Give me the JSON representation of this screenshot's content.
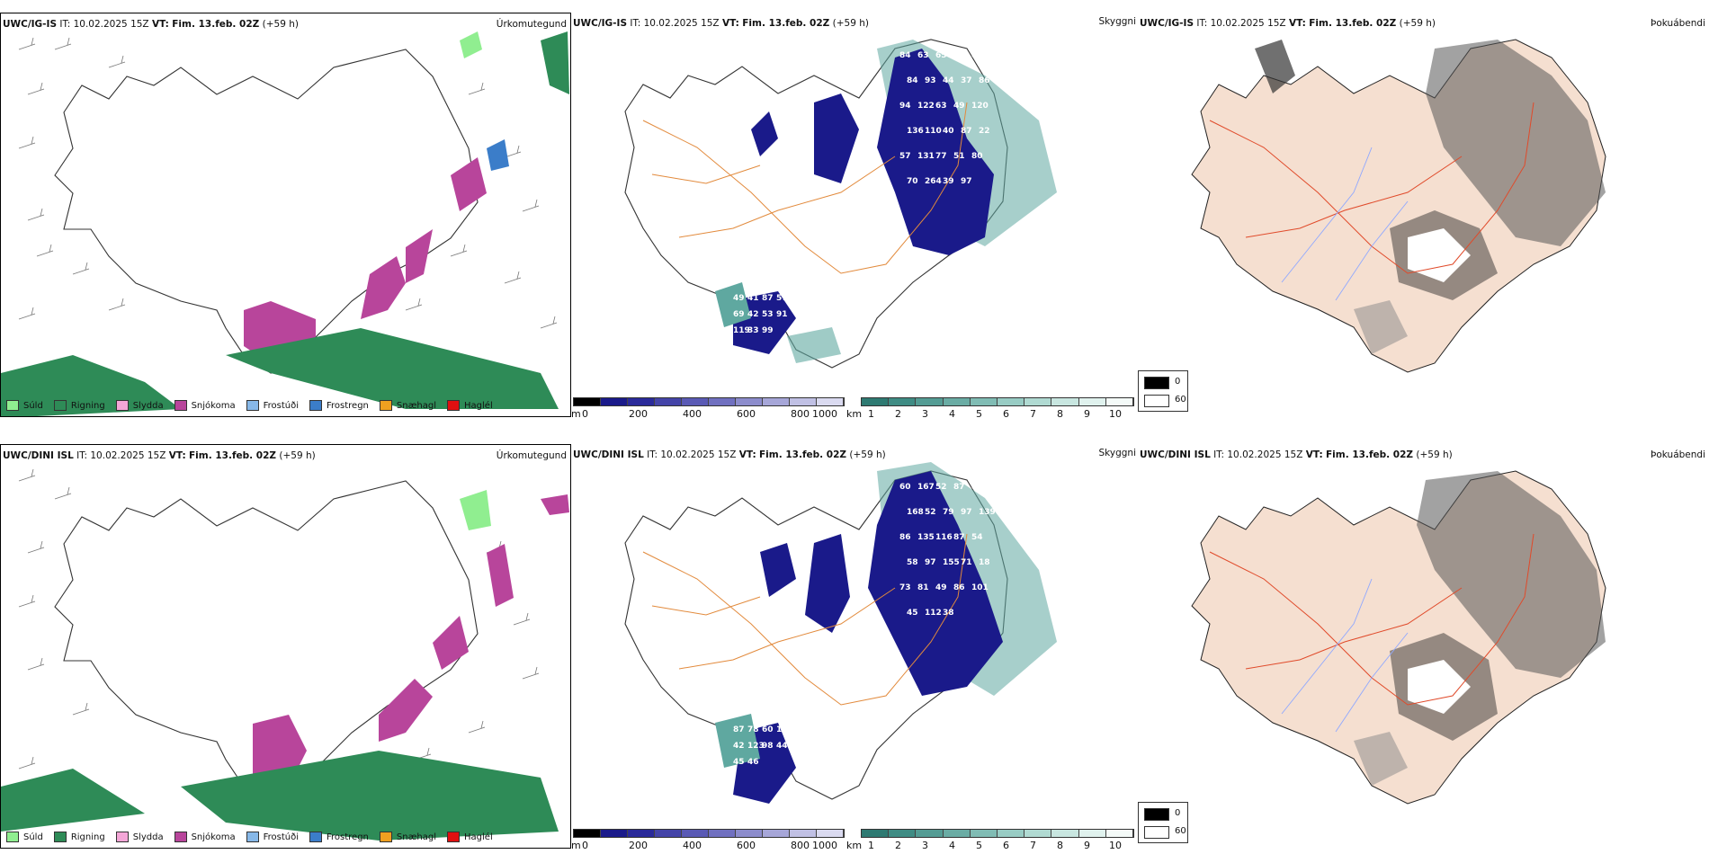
{
  "rows": [
    {
      "model": "UWC/IG-IS",
      "it_label": "IT:",
      "it_value": "10.02.2025 15Z",
      "vt_label": "VT:",
      "vt_value": "Fim. 13.feb. 02Z",
      "lead": "(+59 h)"
    },
    {
      "model": "UWC/DINI ISL",
      "it_label": "IT:",
      "it_value": "10.02.2025 15Z",
      "vt_label": "VT:",
      "vt_value": "Fim. 13.feb. 02Z",
      "lead": "(+59 h)"
    }
  ],
  "panel_titles": {
    "precip": "Úrkomutegund",
    "cloud": "Skyggni",
    "fog": "Þokuábendi"
  },
  "precip_legend": [
    {
      "label": "Súld",
      "color": "#90ee90"
    },
    {
      "label": "Rigning",
      "color": "#2e8b57"
    },
    {
      "label": "Slydda",
      "color": "#f4a6d7"
    },
    {
      "label": "Snjókoma",
      "color": "#b8459b"
    },
    {
      "label": "Frostúði",
      "color": "#87b8e8"
    },
    {
      "label": "Frostregn",
      "color": "#3b7dc9"
    },
    {
      "label": "Snæhagl",
      "color": "#f0a020"
    },
    {
      "label": "Haglél",
      "color": "#e01010"
    }
  ],
  "cloud_base_scale": {
    "unit": "m",
    "ticks": [
      "0",
      "200",
      "400",
      "600",
      "800",
      "1000"
    ]
  },
  "visibility_scale": {
    "unit": "km",
    "ticks": [
      "1",
      "2",
      "3",
      "4",
      "5",
      "6",
      "7",
      "8",
      "9",
      "10"
    ]
  },
  "fog_scale": {
    "low": "0",
    "high": "60"
  },
  "cloud_labels_top": [
    "84",
    "63",
    "65",
    "80",
    "88",
    "84",
    "93",
    "44",
    "37",
    "86",
    "94",
    "122",
    "63",
    "49",
    "120",
    "136",
    "110",
    "40",
    "87",
    "22",
    "57",
    "131",
    "77",
    "51",
    "80",
    "70",
    "264",
    "39",
    "97",
    "49",
    "41",
    "87",
    "57",
    "69",
    "42",
    "53",
    "91",
    "119",
    "33",
    "99"
  ],
  "cloud_labels_bottom": [
    "60",
    "167",
    "52",
    "87",
    "86",
    "168",
    "52",
    "79",
    "97",
    "139",
    "86",
    "135",
    "116",
    "87",
    "54",
    "58",
    "97",
    "155",
    "71",
    "18",
    "73",
    "81",
    "49",
    "86",
    "101",
    "45",
    "112",
    "38",
    "87",
    "78",
    "60",
    "10",
    "42",
    "123",
    "98",
    "44",
    "45",
    "46"
  ],
  "colors": {
    "land_fill": "#f5dfd0",
    "coast": "#222222",
    "roads_orange": "#e28a3c",
    "roads_red": "#e04a2a",
    "rivers": "#8fa8ff",
    "cloud_dark": "#1a1a8a",
    "cloud_teal": "#5fa8a0"
  }
}
